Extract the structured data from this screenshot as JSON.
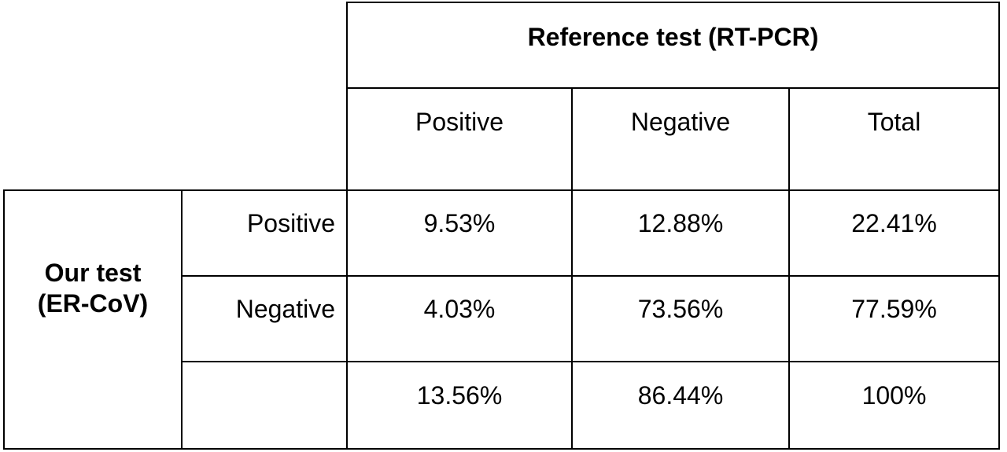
{
  "header": {
    "reference_title": "Reference test (RT-PCR)",
    "columns": [
      "Positive",
      "Negative",
      "Total"
    ]
  },
  "side": {
    "group_label_line1": "Our test",
    "group_label_line2": "(ER-CoV)",
    "rows": [
      "Positive",
      "Negative",
      ""
    ]
  },
  "table": {
    "rows": [
      [
        "9.53%",
        "12.88%",
        "22.41%"
      ],
      [
        "4.03%",
        "73.56%",
        "77.59%"
      ],
      [
        "13.56%",
        "86.44%",
        "100%"
      ]
    ]
  }
}
